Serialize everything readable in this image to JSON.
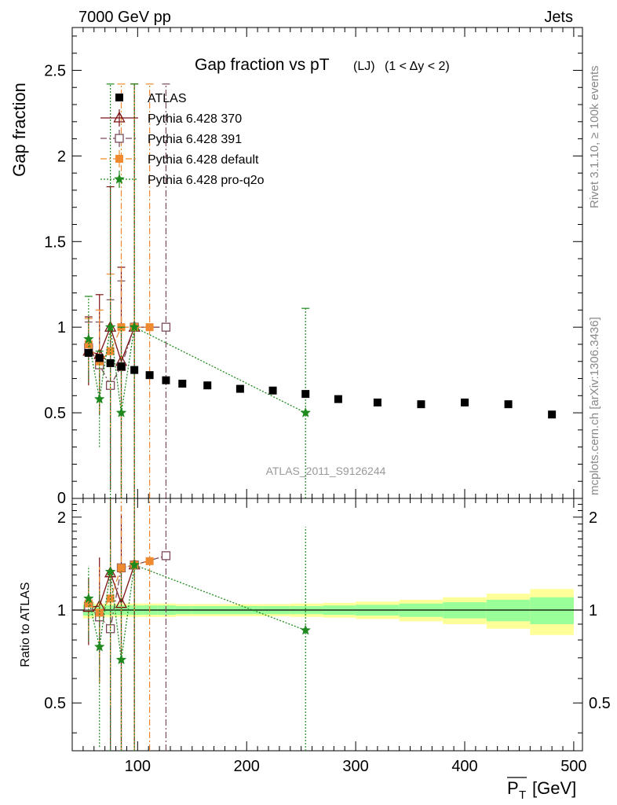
{
  "header": {
    "left": "7000 GeV pp",
    "right": "Jets"
  },
  "side_labels": {
    "rivet": "Rivet 3.1.10, ≥ 100k events",
    "mcplots": "mcplots.cern.ch [arXiv:1306.3436]"
  },
  "watermark": "ATLAS_2011_S9126244",
  "chart_data": [
    {
      "type": "scatter",
      "panel": "main",
      "title_main": "Gap fraction vs pT",
      "title_sub": "(LJ)",
      "title_range": "(1 < Δy < 2)",
      "ylabel": "Gap fraction",
      "ylim": [
        0,
        2.75
      ],
      "yticks": [
        0.5,
        1,
        1.5,
        2,
        2.5
      ],
      "ytick_labels": [
        "0.5",
        "1",
        "1.5",
        "2",
        "2.5"
      ],
      "ytick_zero_label": "0",
      "xlim": [
        40,
        508
      ],
      "legend_position": "top-left",
      "series": [
        {
          "name": "ATLAS",
          "color": "#000000",
          "marker": "filled-square",
          "x": [
            55,
            65,
            75,
            85,
            97,
            111,
            126,
            141,
            164,
            194,
            224,
            254,
            284,
            320,
            360,
            400,
            440,
            480
          ],
          "y": [
            0.85,
            0.82,
            0.79,
            0.77,
            0.75,
            0.72,
            0.69,
            0.67,
            0.66,
            0.64,
            0.63,
            0.61,
            0.58,
            0.56,
            0.55,
            0.56,
            0.55,
            0.49
          ]
        },
        {
          "name": "Pythia 6.428 370",
          "color": "#7a1010",
          "marker": "open-triangle",
          "line": "solid",
          "x": [
            55,
            65,
            75,
            85,
            97
          ],
          "y": [
            0.86,
            0.84,
            1.0,
            0.8,
            1.0
          ],
          "err_lo": [
            0.2,
            0.35,
            0.95,
            0.8,
            1.0
          ],
          "err_hi": [
            0.2,
            0.35,
            0.82,
            0.55,
            1.42
          ]
        },
        {
          "name": "Pythia 6.428 391",
          "color": "#7a4a5a",
          "marker": "open-square",
          "line": "dashdot",
          "x": [
            55,
            65,
            75,
            85,
            97,
            126
          ],
          "y": [
            0.88,
            0.78,
            0.66,
            0.77,
            1.0,
            1.0
          ],
          "err_lo": [
            0.15,
            0.25,
            0.6,
            0.77,
            1.0,
            1.0
          ],
          "err_hi": [
            0.15,
            0.25,
            0.5,
            0.5,
            1.42,
            1.42
          ]
        },
        {
          "name": "Pythia 6.428 default",
          "color": "#f08a30",
          "marker": "filled-square",
          "line": "dashdot",
          "x": [
            55,
            65,
            75,
            85,
            97,
            111
          ],
          "y": [
            0.9,
            0.8,
            0.86,
            1.0,
            1.0,
            1.0
          ],
          "err_lo": [
            0.15,
            0.3,
            0.45,
            1.0,
            1.0,
            1.0
          ],
          "err_hi": [
            0.15,
            0.3,
            0.45,
            1.42,
            1.42,
            1.42
          ]
        },
        {
          "name": "Pythia 6.428 pro-q2o",
          "color": "#1e8a1e",
          "marker": "star",
          "line": "dotted",
          "x": [
            55,
            65,
            75,
            85,
            97,
            254
          ],
          "y": [
            0.93,
            0.58,
            1.0,
            0.5,
            1.0,
            0.5
          ],
          "err_lo": [
            0.25,
            0.28,
            1.0,
            0.5,
            1.0,
            0.5
          ],
          "err_hi": [
            0.25,
            0.28,
            1.42,
            0.5,
            1.42,
            0.61
          ]
        }
      ]
    },
    {
      "type": "scatter",
      "panel": "ratio",
      "ylabel": "Ratio to ATLAS",
      "ylim": [
        0.35,
        2.3
      ],
      "yticks": [
        0.5,
        1,
        2
      ],
      "ytick_labels": [
        "0.5",
        "1",
        "2"
      ],
      "xlabel": "P",
      "xlabel_sub": "T",
      "xlabel_unit": "[GeV]",
      "xlim": [
        40,
        508
      ],
      "xticks": [
        100,
        200,
        300,
        400,
        500
      ],
      "xtick_labels": [
        "100",
        "200",
        "300",
        "400",
        "500"
      ],
      "band_edges": [
        50,
        60,
        70,
        80,
        90,
        105,
        118,
        135,
        150,
        180,
        210,
        240,
        270,
        300,
        340,
        380,
        420,
        460,
        500
      ],
      "band_inner": [
        0.04,
        0.035,
        0.035,
        0.035,
        0.035,
        0.035,
        0.035,
        0.03,
        0.03,
        0.03,
        0.03,
        0.03,
        0.035,
        0.04,
        0.05,
        0.06,
        0.08,
        0.1
      ],
      "band_outer": [
        0.06,
        0.05,
        0.05,
        0.05,
        0.05,
        0.05,
        0.05,
        0.045,
        0.045,
        0.045,
        0.045,
        0.05,
        0.055,
        0.065,
        0.08,
        0.1,
        0.13,
        0.17
      ],
      "series": [
        {
          "name": "Pythia 6.428 370",
          "x": [
            55,
            65,
            75,
            85,
            97
          ],
          "y": [
            1.02,
            1.03,
            1.32,
            1.05,
            1.4
          ],
          "err_lo": [
            0.25,
            0.45,
            1.3,
            1.05,
            1.4
          ],
          "err_hi": [
            0.25,
            0.45,
            1.1,
            1.0,
            1.9
          ]
        },
        {
          "name": "Pythia 6.428 391",
          "x": [
            55,
            65,
            75,
            85,
            97,
            126
          ],
          "y": [
            1.03,
            0.95,
            0.87,
            1.37,
            1.4,
            1.5
          ],
          "err_lo": [
            0.2,
            0.35,
            0.8,
            1.37,
            1.4,
            1.5
          ],
          "err_hi": [
            0.2,
            0.35,
            0.7,
            0.9,
            1.9,
            2.0
          ]
        },
        {
          "name": "Pythia 6.428 default",
          "x": [
            55,
            65,
            75,
            85,
            97,
            111
          ],
          "y": [
            1.05,
            0.98,
            1.09,
            1.37,
            1.4,
            1.44
          ],
          "err_lo": [
            0.2,
            0.4,
            0.6,
            1.37,
            1.4,
            1.44
          ],
          "err_hi": [
            0.2,
            0.4,
            0.6,
            1.9,
            1.9,
            1.9
          ]
        },
        {
          "name": "Pythia 6.428 pro-q2o",
          "x": [
            55,
            65,
            75,
            85,
            97,
            254
          ],
          "y": [
            1.09,
            0.76,
            1.33,
            0.69,
            1.4,
            0.86
          ],
          "err_lo": [
            0.3,
            0.4,
            1.33,
            0.69,
            1.4,
            0.86
          ],
          "err_hi": [
            0.3,
            0.4,
            1.1,
            0.65,
            1.9,
            1.0
          ]
        }
      ]
    }
  ]
}
